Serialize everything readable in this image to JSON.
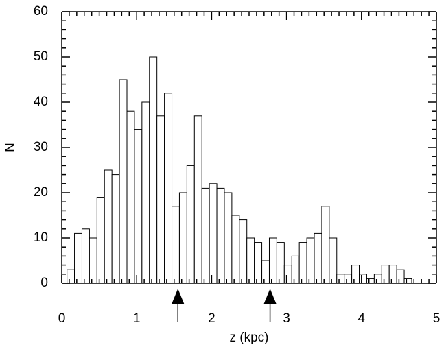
{
  "chart_data": {
    "type": "histogram",
    "xlabel": "z (kpc)",
    "ylabel": "N",
    "bins": [
      0.07,
      0.17,
      0.27,
      0.37,
      0.47,
      0.57,
      0.67,
      0.77,
      0.87,
      0.97,
      1.07,
      1.17,
      1.27,
      1.37,
      1.47,
      1.57,
      1.67,
      1.77,
      1.87,
      1.97,
      2.07,
      2.17,
      2.27,
      2.37,
      2.47,
      2.57,
      2.67,
      2.77,
      2.87,
      2.97,
      3.07,
      3.17,
      3.27,
      3.37,
      3.47,
      3.57,
      3.67,
      3.77,
      3.87,
      3.97,
      4.07,
      4.17,
      4.27,
      4.37,
      4.47,
      4.57,
      4.67
    ],
    "counts": [
      3,
      11,
      12,
      10,
      19,
      25,
      24,
      45,
      38,
      34,
      40,
      50,
      37,
      42,
      17,
      20,
      26,
      37,
      21,
      22,
      21,
      20,
      15,
      14,
      10,
      9,
      5,
      10,
      9,
      4,
      6,
      9,
      10,
      11,
      17,
      10,
      2,
      2,
      4,
      2,
      1,
      2,
      4,
      4,
      3,
      1
    ],
    "color": "#ffffff",
    "markers": [
      1.55,
      2.78
    ],
    "xlim": [
      0,
      5
    ],
    "xticks": [
      0,
      1,
      2,
      3,
      4,
      5
    ],
    "ylim": [
      0,
      60
    ],
    "yticks": [
      0,
      10,
      20,
      30,
      40,
      50,
      60
    ]
  }
}
